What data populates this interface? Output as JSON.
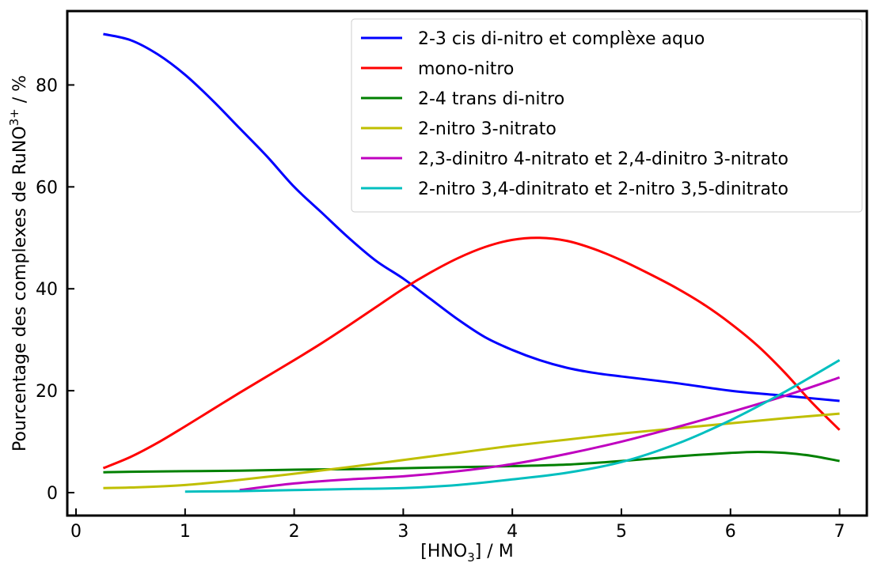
{
  "chart_data": {
    "type": "line",
    "title": "",
    "xlabel": "[HNO",
    "xlabel_sub": "3",
    "xlabel_suffix": "] / M",
    "ylabel": "Pourcentage des complexes de RuNO",
    "ylabel_sup": "3+",
    "ylabel_suffix": " / %",
    "xlim": [
      -0.08,
      7.25
    ],
    "ylim": [
      -4.5,
      94.5
    ],
    "xticks": [
      0,
      1,
      2,
      3,
      4,
      5,
      6,
      7
    ],
    "xtick_labels": [
      "0",
      "1",
      "2",
      "3",
      "4",
      "5",
      "6",
      "7"
    ],
    "yticks": [
      0,
      20,
      40,
      60,
      80
    ],
    "ytick_labels": [
      "0",
      "20",
      "40",
      "60",
      "80"
    ],
    "grid": false,
    "legend_position": "top-right",
    "series": [
      {
        "name": "2-3 cis di-nitro et complèxe aquo",
        "color": "#0000ff",
        "x": [
          0.25,
          0.5,
          0.75,
          1.0,
          1.25,
          1.5,
          1.75,
          2.0,
          2.25,
          2.5,
          2.75,
          3.0,
          3.25,
          3.5,
          3.75,
          4.0,
          4.25,
          4.5,
          4.75,
          5.0,
          5.5,
          6.0,
          6.5,
          7.0
        ],
        "y": [
          90,
          88.8,
          86,
          82,
          77,
          71.5,
          66,
          60,
          55,
          50,
          45.5,
          42,
          38,
          34,
          30.5,
          28,
          26,
          24.5,
          23.5,
          22.8,
          21.5,
          20,
          19,
          18
        ]
      },
      {
        "name": "mono-nitro",
        "color": "#ff0000",
        "x": [
          0.25,
          0.5,
          0.75,
          1.0,
          1.25,
          1.5,
          1.75,
          2.0,
          2.25,
          2.5,
          2.75,
          3.0,
          3.25,
          3.5,
          3.75,
          4.0,
          4.25,
          4.5,
          4.75,
          5.0,
          5.25,
          5.5,
          5.75,
          6.0,
          6.25,
          6.5,
          6.75,
          7.0
        ],
        "y": [
          4.8,
          7,
          9.8,
          13,
          16.3,
          19.6,
          22.8,
          26,
          29.3,
          32.8,
          36.4,
          40,
          43.2,
          46,
          48.2,
          49.6,
          50,
          49.4,
          47.8,
          45.6,
          43,
          40.2,
          37,
          33.2,
          28.8,
          23.5,
          17.6,
          12.3
        ]
      },
      {
        "name": "2-4 trans di-nitro",
        "color": "#008000",
        "x": [
          0.25,
          0.5,
          1.0,
          1.5,
          2.0,
          2.5,
          3.0,
          3.5,
          4.0,
          4.5,
          5.0,
          5.5,
          6.0,
          6.25,
          6.5,
          6.75,
          7.0
        ],
        "y": [
          4,
          4.1,
          4.2,
          4.3,
          4.5,
          4.6,
          4.8,
          5,
          5.2,
          5.5,
          6.2,
          7.1,
          7.8,
          8,
          7.8,
          7.2,
          6.2
        ]
      },
      {
        "name": "2-nitro 3-nitrato",
        "color": "#bfbf00",
        "x": [
          0.25,
          0.5,
          1.0,
          1.5,
          2.0,
          2.5,
          3.0,
          3.5,
          4.0,
          4.5,
          5.0,
          5.5,
          6.0,
          6.5,
          7.0
        ],
        "y": [
          0.9,
          1.0,
          1.5,
          2.5,
          3.7,
          5.0,
          6.4,
          7.8,
          9.2,
          10.4,
          11.6,
          12.6,
          13.6,
          14.6,
          15.5
        ]
      },
      {
        "name": "2,3-dinitro 4-nitrato et 2,4-dinitro 3-nitrato",
        "color": "#bf00bf",
        "x": [
          1.5,
          2.0,
          2.5,
          3.0,
          3.5,
          4.0,
          4.5,
          5.0,
          5.5,
          6.0,
          6.5,
          7.0
        ],
        "y": [
          0.5,
          1.8,
          2.6,
          3.2,
          4.2,
          5.6,
          7.6,
          10.0,
          12.8,
          15.8,
          19.0,
          22.6
        ]
      },
      {
        "name": "2-nitro 3,4-dinitrato et 2-nitro 3,5-dinitrato",
        "color": "#00bfbf",
        "x": [
          1.0,
          1.5,
          2.0,
          2.5,
          3.0,
          3.5,
          4.0,
          4.5,
          5.0,
          5.5,
          6.0,
          6.5,
          7.0
        ],
        "y": [
          0.2,
          0.3,
          0.5,
          0.7,
          0.9,
          1.5,
          2.6,
          3.9,
          6.0,
          9.5,
          14.2,
          19.8,
          26.0
        ]
      }
    ]
  }
}
